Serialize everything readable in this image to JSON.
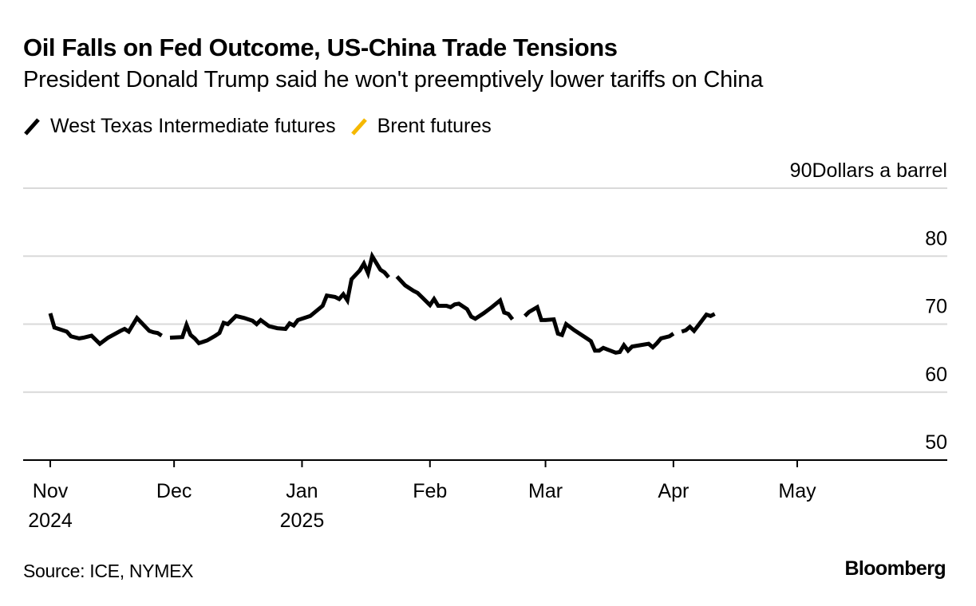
{
  "header": {
    "title": "Oil Falls on Fed Outcome, US-China Trade Tensions",
    "subtitle": "President Donald Trump said he won't preemptively lower tariffs on China"
  },
  "footer": {
    "source": "Source: ICE, NYMEX",
    "brand": "Bloomberg"
  },
  "chart_data": {
    "type": "line",
    "title": "Oil Falls on Fed Outcome, US-China Trade Tensions",
    "subtitle": "President Donald Trump said he won't preemptively lower tariffs on China",
    "ylabel": "Dollars a barrel",
    "xlabel": "",
    "ylim": [
      50,
      90
    ],
    "yticks": [
      50,
      60,
      70,
      80,
      90
    ],
    "ytick_labels": [
      "50",
      "60",
      "70",
      "80",
      "90"
    ],
    "y_unit_label": "Dollars a barrel",
    "x_range": [
      "2024-11-01",
      "2025-05-24"
    ],
    "xticks": [
      {
        "date": "2024-11-01",
        "label": [
          "Nov",
          "2024"
        ]
      },
      {
        "date": "2024-12-01",
        "label": [
          "Dec",
          ""
        ]
      },
      {
        "date": "2025-01-01",
        "label": [
          "Jan",
          "2025"
        ]
      },
      {
        "date": "2025-02-01",
        "label": [
          "Feb",
          ""
        ]
      },
      {
        "date": "2025-03-01",
        "label": [
          "Mar",
          ""
        ]
      },
      {
        "date": "2025-04-01",
        "label": [
          "Apr",
          ""
        ]
      },
      {
        "date": "2025-05-01",
        "label": [
          "May",
          ""
        ]
      }
    ],
    "grid": true,
    "legend": "top-left",
    "series": [
      {
        "name": "West Texas Intermediate futures",
        "color": "#000000",
        "points": [
          [
            "2024-11-01",
            71.6
          ],
          [
            "2024-11-02",
            69.5
          ],
          [
            "2024-11-05",
            68.9
          ],
          [
            "2024-11-06",
            68.2
          ],
          [
            "2024-11-08",
            67.9
          ],
          [
            "2024-11-09",
            68.0
          ],
          [
            "2024-11-11",
            68.3
          ],
          [
            "2024-11-13",
            67.1
          ],
          [
            "2024-11-15",
            68.0
          ],
          [
            "2024-11-18",
            69.0
          ],
          [
            "2024-11-19",
            69.3
          ],
          [
            "2024-11-20",
            68.9
          ],
          [
            "2024-11-22",
            70.9
          ],
          [
            "2024-11-25",
            69.0
          ],
          [
            "2024-11-26",
            68.8
          ],
          [
            "2024-11-27",
            68.7
          ],
          [
            "2024-11-28",
            68.3
          ],
          [
            "2024-11-29",
            null
          ],
          [
            "2024-11-30",
            68.0
          ],
          [
            "2024-12-03",
            68.1
          ],
          [
            "2024-12-04",
            69.9
          ],
          [
            "2024-12-05",
            68.4
          ],
          [
            "2024-12-06",
            67.9
          ],
          [
            "2024-12-07",
            67.2
          ],
          [
            "2024-12-09",
            67.6
          ],
          [
            "2024-12-11",
            68.3
          ],
          [
            "2024-12-12",
            68.7
          ],
          [
            "2024-12-13",
            70.2
          ],
          [
            "2024-12-14",
            70.0
          ],
          [
            "2024-12-16",
            71.2
          ],
          [
            "2024-12-18",
            70.9
          ],
          [
            "2024-12-20",
            70.5
          ],
          [
            "2024-12-21",
            70.0
          ],
          [
            "2024-12-22",
            70.6
          ],
          [
            "2024-12-24",
            69.7
          ],
          [
            "2024-12-26",
            69.4
          ],
          [
            "2024-12-28",
            69.3
          ],
          [
            "2024-12-29",
            70.1
          ],
          [
            "2024-12-30",
            69.8
          ],
          [
            "2024-12-31",
            70.6
          ],
          [
            "2025-01-02",
            71.0
          ],
          [
            "2025-01-03",
            71.2
          ],
          [
            "2025-01-06",
            72.7
          ],
          [
            "2025-01-07",
            74.2
          ],
          [
            "2025-01-09",
            74.0
          ],
          [
            "2025-01-10",
            73.7
          ],
          [
            "2025-01-11",
            74.4
          ],
          [
            "2025-01-12",
            73.5
          ],
          [
            "2025-01-13",
            76.6
          ],
          [
            "2025-01-15",
            77.9
          ],
          [
            "2025-01-16",
            78.9
          ],
          [
            "2025-01-17",
            77.5
          ],
          [
            "2025-01-18",
            80.0
          ],
          [
            "2025-01-20",
            78.0
          ],
          [
            "2025-01-21",
            77.6
          ],
          [
            "2025-01-22",
            76.9
          ],
          [
            "2025-01-23",
            null
          ],
          [
            "2025-01-24",
            77.0
          ],
          [
            "2025-01-26",
            75.7
          ],
          [
            "2025-01-28",
            74.9
          ],
          [
            "2025-01-29",
            74.6
          ],
          [
            "2025-01-30",
            74.0
          ],
          [
            "2025-01-31",
            73.4
          ],
          [
            "2025-02-01",
            72.8
          ],
          [
            "2025-02-02",
            73.7
          ],
          [
            "2025-02-03",
            72.7
          ],
          [
            "2025-02-05",
            72.7
          ],
          [
            "2025-02-06",
            72.5
          ],
          [
            "2025-02-07",
            72.9
          ],
          [
            "2025-02-08",
            73.0
          ],
          [
            "2025-02-10",
            72.2
          ],
          [
            "2025-02-11",
            71.1
          ],
          [
            "2025-02-12",
            70.8
          ],
          [
            "2025-02-14",
            71.6
          ],
          [
            "2025-02-16",
            72.5
          ],
          [
            "2025-02-18",
            73.5
          ],
          [
            "2025-02-19",
            71.7
          ],
          [
            "2025-02-20",
            71.5
          ],
          [
            "2025-02-21",
            70.7
          ],
          [
            "2025-02-22",
            null
          ],
          [
            "2025-02-24",
            71.2
          ],
          [
            "2025-02-25",
            71.8
          ],
          [
            "2025-02-27",
            72.5
          ],
          [
            "2025-02-28",
            70.6
          ],
          [
            "2025-03-01",
            70.6
          ],
          [
            "2025-03-03",
            70.7
          ],
          [
            "2025-03-04",
            68.6
          ],
          [
            "2025-03-05",
            68.4
          ],
          [
            "2025-03-06",
            70.0
          ],
          [
            "2025-03-08",
            69.1
          ],
          [
            "2025-03-09",
            68.7
          ],
          [
            "2025-03-11",
            67.9
          ],
          [
            "2025-03-12",
            67.5
          ],
          [
            "2025-03-13",
            66.1
          ],
          [
            "2025-03-14",
            66.1
          ],
          [
            "2025-03-15",
            66.5
          ],
          [
            "2025-03-18",
            65.8
          ],
          [
            "2025-03-19",
            65.9
          ],
          [
            "2025-03-20",
            66.9
          ],
          [
            "2025-03-21",
            66.1
          ],
          [
            "2025-03-22",
            66.7
          ],
          [
            "2025-03-24",
            66.9
          ],
          [
            "2025-03-26",
            67.1
          ],
          [
            "2025-03-27",
            66.6
          ],
          [
            "2025-03-28",
            67.2
          ],
          [
            "2025-03-29",
            67.9
          ],
          [
            "2025-03-31",
            68.2
          ],
          [
            "2025-04-01",
            68.6
          ],
          [
            "2025-04-03",
            68.9
          ],
          [
            "2025-04-04",
            69.1
          ],
          [
            "2025-04-05",
            69.6
          ],
          [
            "2025-04-06",
            69.0
          ],
          [
            "2025-04-08",
            70.6
          ],
          [
            "2025-04-09",
            71.4
          ],
          [
            "2025-04-10",
            71.2
          ],
          [
            "2025-04-11",
            71.5
          ],
          [
            "2025-04-02",
            null
          ]
        ]
      },
      {
        "name": "Brent futures",
        "color": "#f5b800",
        "points": []
      }
    ]
  }
}
